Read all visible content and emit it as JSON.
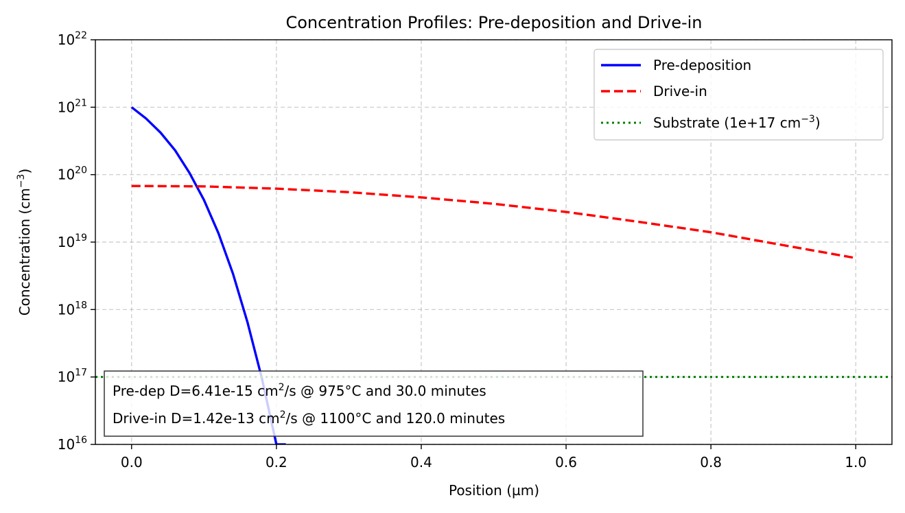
{
  "chart_data": {
    "type": "line",
    "title": "Concentration Profiles: Pre-deposition and Drive-in",
    "xlabel": "Position (µm)",
    "ylabel": "Concentration (cm",
    "ylabel_exp": "−3",
    "ylabel_close": ")",
    "xlim": [
      -0.05,
      1.05
    ],
    "ylim": [
      1e+16,
      1e+22
    ],
    "yscale": "log",
    "grid": true,
    "legend_position": "top-right",
    "x_ticks": [
      {
        "value": 0.0,
        "label": "0.0"
      },
      {
        "value": 0.2,
        "label": "0.2"
      },
      {
        "value": 0.4,
        "label": "0.4"
      },
      {
        "value": 0.6,
        "label": "0.6"
      },
      {
        "value": 0.8,
        "label": "0.8"
      },
      {
        "value": 1.0,
        "label": "1.0"
      }
    ],
    "y_ticks": [
      {
        "value": 1e+16,
        "base": "10",
        "exp": "16"
      },
      {
        "value": 1e+17,
        "base": "10",
        "exp": "17"
      },
      {
        "value": 1e+18,
        "base": "10",
        "exp": "18"
      },
      {
        "value": 1e+19,
        "base": "10",
        "exp": "19"
      },
      {
        "value": 1e+20,
        "base": "10",
        "exp": "20"
      },
      {
        "value": 1e+21,
        "base": "10",
        "exp": "21"
      },
      {
        "value": 1e+22,
        "base": "10",
        "exp": "22"
      }
    ],
    "series": [
      {
        "name": "Pre-deposition",
        "color": "#0000ff",
        "style": "solid",
        "x": [
          0.0,
          0.02,
          0.04,
          0.06,
          0.08,
          0.1,
          0.12,
          0.14,
          0.16,
          0.18,
          0.2,
          0.213
        ],
        "y": [
          1e+21,
          6.8e+20,
          4.2e+20,
          2.3e+20,
          1.06e+20,
          4.2e+19,
          1.35e+19,
          3.4e+18,
          6.5e+17,
          9.5e+16,
          1e+16,
          1e+16
        ]
      },
      {
        "name": "Drive-in",
        "color": "#ff0000",
        "style": "dashed",
        "x": [
          0.0,
          0.1,
          0.2,
          0.3,
          0.4,
          0.5,
          0.6,
          0.7,
          0.8,
          0.9,
          1.0
        ],
        "y": [
          6.8e+19,
          6.7e+19,
          6.2e+19,
          5.5e+19,
          4.6e+19,
          3.7e+19,
          2.8e+19,
          2e+19,
          1.4e+19,
          9e+18,
          5.8e+18
        ]
      },
      {
        "name": "Substrate (1e+17 cm",
        "name_exp": "−3",
        "name_close": ")",
        "color": "#008000",
        "style": "dotted",
        "x": [
          -0.05,
          1.05
        ],
        "y": [
          1e+17,
          1e+17
        ]
      }
    ],
    "annotations": [
      {
        "prefix": "Pre-dep D=6.41e-15 cm",
        "sup": "2",
        "suffix": "/s @ 975°C and 30.0 minutes"
      },
      {
        "prefix": "Drive-in D=1.42e-13 cm",
        "sup": "2",
        "suffix": "/s @ 1100°C and 120.0 minutes"
      }
    ]
  }
}
